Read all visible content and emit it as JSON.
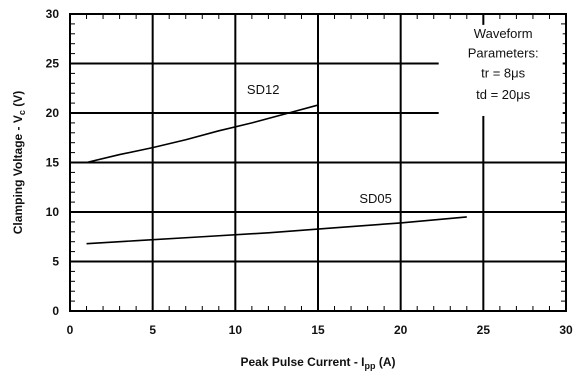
{
  "chart_data": {
    "type": "line",
    "xlabel": "Peak Pulse Current - I",
    "xlabel_sub": "pp",
    "xlabel_unit": " (A)",
    "ylabel": "Clamping Voltage - V",
    "ylabel_sub": "c",
    "ylabel_unit": " (V)",
    "xlim": [
      0,
      30
    ],
    "ylim": [
      0,
      30
    ],
    "xticks": [
      0,
      5,
      10,
      15,
      20,
      25,
      30
    ],
    "yticks": [
      0,
      5,
      10,
      15,
      20,
      25,
      30
    ],
    "grid": true,
    "series": [
      {
        "name": "SD12",
        "x": [
          1,
          3,
          5,
          7,
          9,
          11,
          13,
          15
        ],
        "y": [
          15.0,
          15.8,
          16.5,
          17.3,
          18.2,
          19.0,
          19.9,
          20.8
        ]
      },
      {
        "name": "SD05",
        "x": [
          1,
          4,
          8,
          12,
          16,
          20,
          24
        ],
        "y": [
          6.8,
          7.1,
          7.5,
          7.9,
          8.4,
          8.9,
          9.5
        ]
      }
    ],
    "annotations": [
      "Waveform",
      "Parameters:",
      "tr = 8μs",
      "td = 20μs"
    ]
  }
}
